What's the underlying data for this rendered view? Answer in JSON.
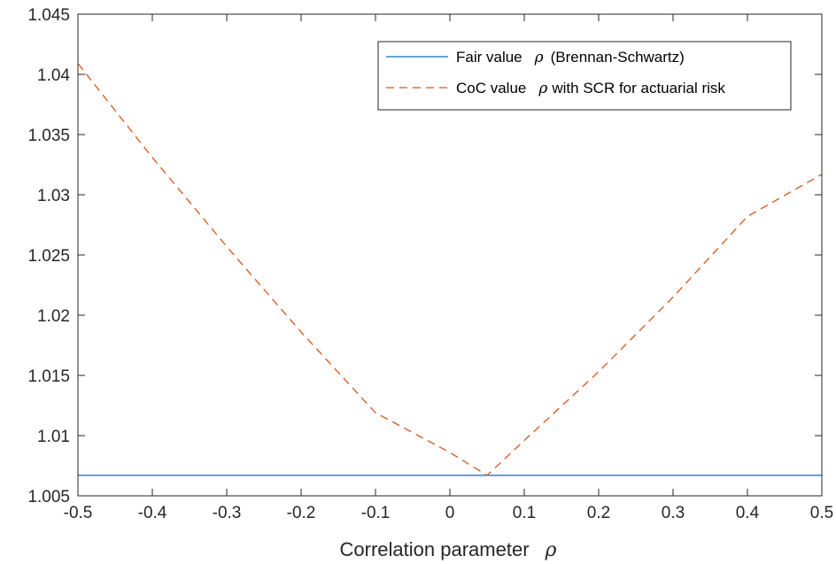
{
  "chart_data": {
    "type": "line",
    "title": "",
    "xlabel": "Correlation parameter",
    "xlabel_symbol": "ρ",
    "ylabel": "",
    "xlim": [
      -0.5,
      0.5
    ],
    "ylim": [
      1.005,
      1.045
    ],
    "xticks": [
      "-0.5",
      "-0.4",
      "-0.3",
      "-0.2",
      "-0.1",
      "0",
      "0.1",
      "0.2",
      "0.3",
      "0.4",
      "0.5"
    ],
    "yticks": [
      "1.005",
      "1.01",
      "1.015",
      "1.02",
      "1.025",
      "1.03",
      "1.035",
      "1.04",
      "1.045"
    ],
    "grid": false,
    "legend_position": "top-right",
    "series": [
      {
        "name_before": "Fair value",
        "name_symbol": "ρ",
        "name_after": "(Brennan-Schwartz)",
        "color": "#0072BD",
        "dash": "solid",
        "x": [
          -0.5,
          0.5
        ],
        "y": [
          1.0067,
          1.0067
        ]
      },
      {
        "name_before": "CoC value",
        "name_symbol": "ρ",
        "name_after": "with SCR for actuarial risk",
        "color": "#D95319",
        "dash": "dashed",
        "x": [
          -0.5,
          -0.4,
          -0.3,
          -0.2,
          -0.1,
          0.0,
          0.05,
          0.1,
          0.2,
          0.3,
          0.4,
          0.5
        ],
        "y": [
          1.0409,
          1.0331,
          1.0257,
          1.0186,
          1.0119,
          1.0086,
          1.0067,
          1.0096,
          1.0153,
          1.0215,
          1.0282,
          1.0317
        ]
      }
    ]
  }
}
